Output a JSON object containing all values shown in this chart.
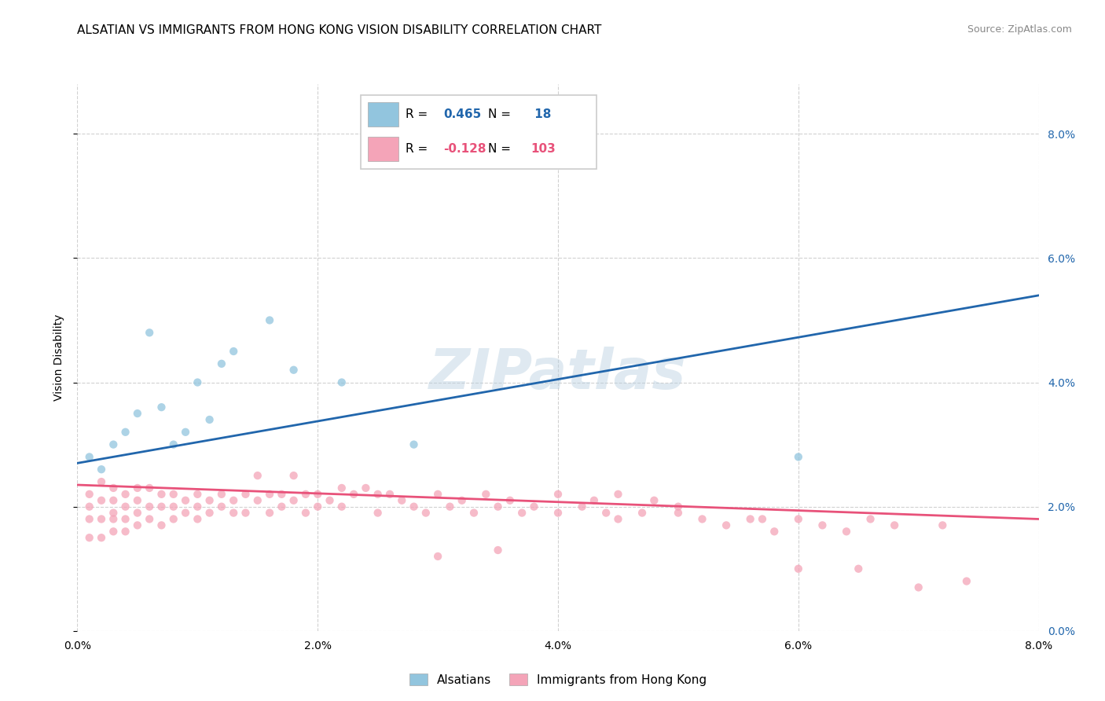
{
  "title": "ALSATIAN VS IMMIGRANTS FROM HONG KONG VISION DISABILITY CORRELATION CHART",
  "source": "Source: ZipAtlas.com",
  "ylabel": "Vision Disability",
  "xlim": [
    0.0,
    0.08
  ],
  "ylim": [
    0.0,
    0.088
  ],
  "yticks": [
    0.0,
    0.02,
    0.04,
    0.06,
    0.08
  ],
  "xticks": [
    0.0,
    0.02,
    0.04,
    0.06,
    0.08
  ],
  "r_blue": 0.465,
  "n_blue": 18,
  "r_pink": -0.128,
  "n_pink": 103,
  "watermark": "ZIPatlas",
  "blue_scatter_x": [
    0.001,
    0.002,
    0.003,
    0.004,
    0.005,
    0.006,
    0.007,
    0.008,
    0.009,
    0.01,
    0.011,
    0.012,
    0.013,
    0.016,
    0.018,
    0.022,
    0.028,
    0.06
  ],
  "blue_scatter_y": [
    0.028,
    0.026,
    0.03,
    0.032,
    0.035,
    0.048,
    0.036,
    0.03,
    0.032,
    0.04,
    0.034,
    0.043,
    0.045,
    0.05,
    0.042,
    0.04,
    0.03,
    0.028
  ],
  "pink_scatter_x": [
    0.001,
    0.001,
    0.001,
    0.001,
    0.002,
    0.002,
    0.002,
    0.002,
    0.003,
    0.003,
    0.003,
    0.003,
    0.003,
    0.004,
    0.004,
    0.004,
    0.004,
    0.005,
    0.005,
    0.005,
    0.005,
    0.006,
    0.006,
    0.006,
    0.007,
    0.007,
    0.007,
    0.008,
    0.008,
    0.008,
    0.009,
    0.009,
    0.01,
    0.01,
    0.01,
    0.011,
    0.011,
    0.012,
    0.012,
    0.013,
    0.013,
    0.014,
    0.014,
    0.015,
    0.015,
    0.016,
    0.016,
    0.017,
    0.017,
    0.018,
    0.018,
    0.019,
    0.019,
    0.02,
    0.02,
    0.021,
    0.022,
    0.022,
    0.023,
    0.024,
    0.025,
    0.025,
    0.026,
    0.027,
    0.028,
    0.029,
    0.03,
    0.031,
    0.032,
    0.033,
    0.034,
    0.035,
    0.036,
    0.037,
    0.038,
    0.04,
    0.042,
    0.043,
    0.044,
    0.045,
    0.047,
    0.048,
    0.05,
    0.052,
    0.054,
    0.056,
    0.058,
    0.06,
    0.062,
    0.064,
    0.066,
    0.068,
    0.06,
    0.065,
    0.07,
    0.072,
    0.074,
    0.057,
    0.04,
    0.045,
    0.03,
    0.035,
    0.05
  ],
  "pink_scatter_y": [
    0.022,
    0.02,
    0.018,
    0.015,
    0.024,
    0.021,
    0.018,
    0.015,
    0.023,
    0.021,
    0.019,
    0.018,
    0.016,
    0.022,
    0.02,
    0.018,
    0.016,
    0.023,
    0.021,
    0.019,
    0.017,
    0.023,
    0.02,
    0.018,
    0.022,
    0.02,
    0.017,
    0.022,
    0.02,
    0.018,
    0.021,
    0.019,
    0.022,
    0.02,
    0.018,
    0.021,
    0.019,
    0.022,
    0.02,
    0.021,
    0.019,
    0.022,
    0.019,
    0.025,
    0.021,
    0.022,
    0.019,
    0.022,
    0.02,
    0.025,
    0.021,
    0.022,
    0.019,
    0.022,
    0.02,
    0.021,
    0.023,
    0.02,
    0.022,
    0.023,
    0.022,
    0.019,
    0.022,
    0.021,
    0.02,
    0.019,
    0.022,
    0.02,
    0.021,
    0.019,
    0.022,
    0.02,
    0.021,
    0.019,
    0.02,
    0.022,
    0.02,
    0.021,
    0.019,
    0.022,
    0.019,
    0.021,
    0.019,
    0.018,
    0.017,
    0.018,
    0.016,
    0.018,
    0.017,
    0.016,
    0.018,
    0.017,
    0.01,
    0.01,
    0.007,
    0.017,
    0.008,
    0.018,
    0.019,
    0.018,
    0.012,
    0.013,
    0.02
  ],
  "blue_line_x": [
    0.0,
    0.08
  ],
  "blue_line_y": [
    0.027,
    0.054
  ],
  "pink_line_x": [
    0.0,
    0.08
  ],
  "pink_line_y": [
    0.0235,
    0.018
  ],
  "blue_color": "#92c5de",
  "pink_color": "#f4a4b8",
  "blue_line_color": "#2166ac",
  "pink_line_color": "#e8527a",
  "grid_color": "#cccccc",
  "background_color": "#ffffff",
  "title_fontsize": 11,
  "label_fontsize": 10,
  "tick_fontsize": 10,
  "scatter_size": 55,
  "scatter_alpha": 0.75
}
